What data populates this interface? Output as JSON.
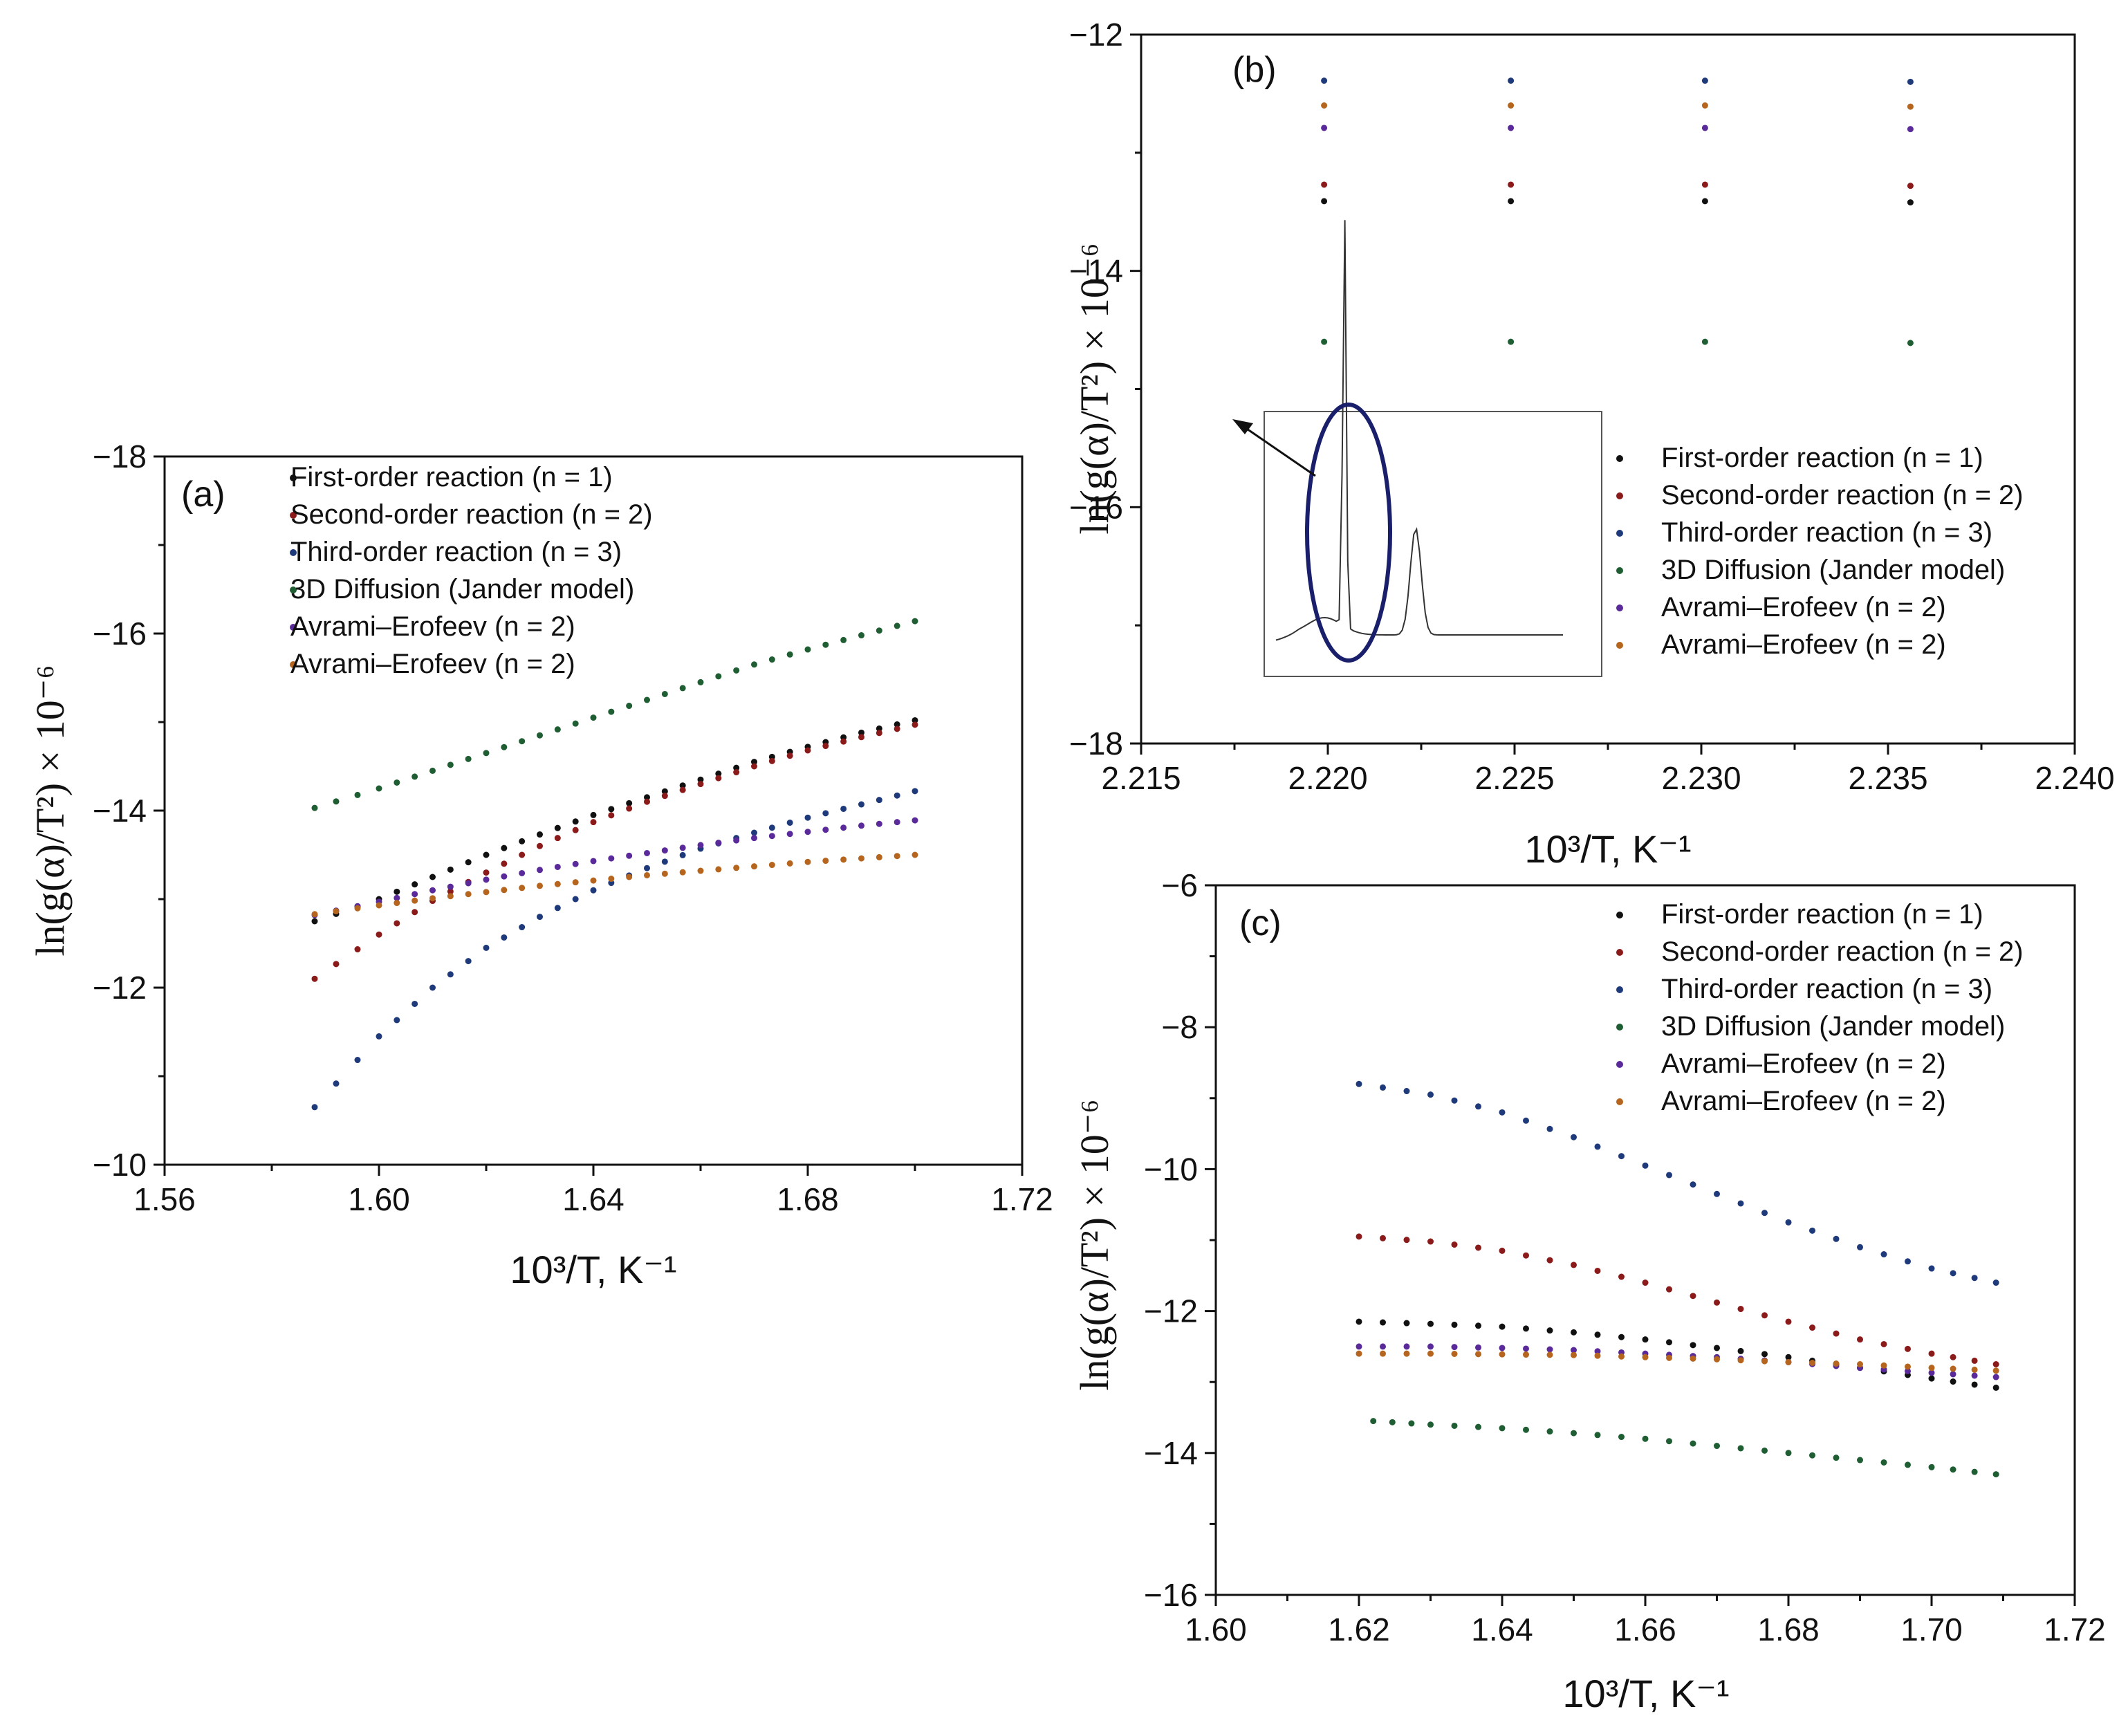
{
  "colors": {
    "first_order": "#111111",
    "second_order": "#8b1a1a",
    "third_order": "#1f3a7a",
    "diffusion_3d": "#1e5e32",
    "avrami_1": "#5a2a9a",
    "avrami_2": "#b5651d",
    "inset_ellipse": "#1a1f6b"
  },
  "chart_data": [
    {
      "id": "a",
      "type": "scatter",
      "panel_label": "(a)",
      "xlabel": "10³/T, K⁻¹",
      "ylabel": "ln(g(α)/T²) × 10⁻⁶",
      "xlim": [
        1.56,
        1.72
      ],
      "ylim": [
        -10,
        -18
      ],
      "xticks": [
        "1.56",
        "1.60",
        "1.64",
        "1.68",
        "1.72"
      ],
      "yticks": [
        "−10",
        "−12",
        "−14",
        "−16",
        "−18"
      ],
      "legend": [
        "First-order reaction (n = 1)",
        "Second-order reaction (n = 2)",
        "Third-order reaction (n = 3)",
        "3D Diffusion (Jander model)",
        "Avrami–Erofeev (n = 2)",
        "Avrami–Erofeev (n = 2)"
      ],
      "series": [
        {
          "name": "First-order reaction (n = 1)",
          "color_key": "first_order",
          "x": [
            1.588,
            1.6,
            1.61,
            1.62,
            1.63,
            1.64,
            1.65,
            1.66,
            1.67,
            1.68,
            1.69,
            1.7
          ],
          "y": [
            -12.75,
            -13.0,
            -13.25,
            -13.5,
            -13.73,
            -13.95,
            -14.15,
            -14.35,
            -14.55,
            -14.72,
            -14.88,
            -15.02
          ]
        },
        {
          "name": "Second-order reaction (n = 2)",
          "color_key": "second_order",
          "x": [
            1.588,
            1.6,
            1.61,
            1.62,
            1.63,
            1.64,
            1.65,
            1.66,
            1.67,
            1.68,
            1.69,
            1.7
          ],
          "y": [
            -12.1,
            -12.6,
            -12.98,
            -13.3,
            -13.6,
            -13.87,
            -14.1,
            -14.3,
            -14.5,
            -14.68,
            -14.83,
            -14.97
          ]
        },
        {
          "name": "Third-order reaction (n = 3)",
          "color_key": "third_order",
          "x": [
            1.588,
            1.6,
            1.61,
            1.62,
            1.63,
            1.64,
            1.65,
            1.66,
            1.67,
            1.68,
            1.69,
            1.7
          ],
          "y": [
            -10.65,
            -11.45,
            -12.0,
            -12.45,
            -12.8,
            -13.1,
            -13.35,
            -13.57,
            -13.75,
            -13.92,
            -14.07,
            -14.22
          ]
        },
        {
          "name": "3D Diffusion (Jander model)",
          "color_key": "diffusion_3d",
          "x": [
            1.588,
            1.6,
            1.61,
            1.62,
            1.63,
            1.64,
            1.65,
            1.66,
            1.67,
            1.68,
            1.69,
            1.7
          ],
          "y": [
            -14.03,
            -14.25,
            -14.45,
            -14.65,
            -14.85,
            -15.05,
            -15.25,
            -15.45,
            -15.65,
            -15.82,
            -15.98,
            -16.14
          ]
        },
        {
          "name": "Avrami–Erofeev (n = 2)",
          "color_key": "avrami_1",
          "x": [
            1.588,
            1.6,
            1.61,
            1.62,
            1.63,
            1.64,
            1.65,
            1.66,
            1.67,
            1.68,
            1.69,
            1.7
          ],
          "y": [
            -12.82,
            -12.97,
            -13.1,
            -13.22,
            -13.33,
            -13.43,
            -13.52,
            -13.61,
            -13.69,
            -13.76,
            -13.83,
            -13.89
          ]
        },
        {
          "name": "Avrami–Erofeev (n = 2)",
          "color_key": "avrami_2",
          "x": [
            1.588,
            1.6,
            1.61,
            1.62,
            1.63,
            1.64,
            1.65,
            1.66,
            1.67,
            1.68,
            1.69,
            1.7
          ],
          "y": [
            -12.83,
            -12.93,
            -13.01,
            -13.08,
            -13.15,
            -13.21,
            -13.27,
            -13.32,
            -13.37,
            -13.42,
            -13.46,
            -13.5
          ]
        }
      ]
    },
    {
      "id": "b",
      "type": "scatter",
      "panel_label": "(b)",
      "xlabel": "10³/T, K⁻¹",
      "ylabel": "ln(g(α)/T²) × 10⁻⁶",
      "xlim": [
        2.215,
        2.24
      ],
      "ylim": [
        -18,
        -12
      ],
      "xticks": [
        "2.215",
        "2.220",
        "2.225",
        "2.230",
        "2.235",
        "2.240"
      ],
      "yticks": [
        "−18",
        "−16",
        "−14",
        "−12"
      ],
      "legend": [
        "First-order reaction (n = 1)",
        "Second-order reaction (n = 2)",
        "Third-order reaction (n = 3)",
        "3D Diffusion (Jander model)",
        "Avrami–Erofeev (n = 2)",
        "Avrami–Erofeev (n = 2)"
      ],
      "series": [
        {
          "name": "First-order reaction (n = 1)",
          "color_key": "first_order",
          "x": [
            2.2199,
            2.2249,
            2.2301,
            2.2356
          ],
          "y": [
            -13.41,
            -13.41,
            -13.41,
            -13.42
          ]
        },
        {
          "name": "Second-order reaction (n = 2)",
          "color_key": "second_order",
          "x": [
            2.2199,
            2.2249,
            2.2301,
            2.2356
          ],
          "y": [
            -13.27,
            -13.27,
            -13.27,
            -13.28
          ]
        },
        {
          "name": "Third-order reaction (n = 3)",
          "color_key": "third_order",
          "x": [
            2.2199,
            2.2249,
            2.2301,
            2.2356
          ],
          "y": [
            -12.39,
            -12.39,
            -12.39,
            -12.4
          ]
        },
        {
          "name": "3D Diffusion (Jander model)",
          "color_key": "diffusion_3d",
          "x": [
            2.2199,
            2.2249,
            2.2301,
            2.2356
          ],
          "y": [
            -14.6,
            -14.6,
            -14.6,
            -14.61
          ]
        },
        {
          "name": "Avrami–Erofeev (n = 2)",
          "color_key": "avrami_1",
          "x": [
            2.2199,
            2.2249,
            2.2301,
            2.2356
          ],
          "y": [
            -12.79,
            -12.79,
            -12.79,
            -12.8
          ]
        },
        {
          "name": "Avrami–Erofeev (n = 2)",
          "color_key": "avrami_2",
          "x": [
            2.2199,
            2.2249,
            2.2301,
            2.2356
          ],
          "y": [
            -12.6,
            -12.6,
            -12.6,
            -12.61
          ]
        }
      ]
    },
    {
      "id": "c",
      "type": "scatter",
      "panel_label": "(c)",
      "xlabel": "10³/T, K⁻¹",
      "ylabel": "ln(g(α)/T²) × 10⁻⁶",
      "xlim": [
        1.6,
        1.72
      ],
      "ylim": [
        -16,
        -6
      ],
      "xticks": [
        "1.60",
        "1.62",
        "1.64",
        "1.66",
        "1.68",
        "1.70",
        "1.72"
      ],
      "yticks": [
        "−16",
        "−14",
        "−12",
        "−10",
        "−8",
        "−6"
      ],
      "legend": [
        "First-order reaction (n = 1)",
        "Second-order reaction (n = 2)",
        "Third-order reaction (n = 3)",
        "3D Diffusion (Jander model)",
        "Avrami–Erofeev (n = 2)",
        "Avrami–Erofeev (n = 2)"
      ],
      "series": [
        {
          "name": "First-order reaction (n = 1)",
          "color_key": "first_order",
          "x": [
            1.62,
            1.63,
            1.64,
            1.65,
            1.66,
            1.67,
            1.68,
            1.69,
            1.7,
            1.709
          ],
          "y": [
            -12.15,
            -12.18,
            -12.22,
            -12.3,
            -12.4,
            -12.52,
            -12.65,
            -12.8,
            -12.95,
            -13.08
          ]
        },
        {
          "name": "Second-order reaction (n = 2)",
          "color_key": "second_order",
          "x": [
            1.62,
            1.63,
            1.64,
            1.65,
            1.66,
            1.67,
            1.68,
            1.69,
            1.7,
            1.709
          ],
          "y": [
            -10.95,
            -11.02,
            -11.15,
            -11.35,
            -11.6,
            -11.88,
            -12.15,
            -12.4,
            -12.6,
            -12.75
          ]
        },
        {
          "name": "Third-order reaction (n = 3)",
          "color_key": "third_order",
          "x": [
            1.62,
            1.63,
            1.64,
            1.65,
            1.66,
            1.67,
            1.68,
            1.69,
            1.7,
            1.709
          ],
          "y": [
            -8.8,
            -8.95,
            -9.2,
            -9.55,
            -9.95,
            -10.35,
            -10.75,
            -11.1,
            -11.4,
            -11.6
          ]
        },
        {
          "name": "3D Diffusion (Jander model)",
          "color_key": "diffusion_3d",
          "x": [
            1.622,
            1.63,
            1.64,
            1.65,
            1.66,
            1.67,
            1.68,
            1.69,
            1.7,
            1.709
          ],
          "y": [
            -13.55,
            -13.6,
            -13.65,
            -13.72,
            -13.8,
            -13.9,
            -14.0,
            -14.1,
            -14.2,
            -14.3
          ]
        },
        {
          "name": "Avrami–Erofeev (n = 2)",
          "color_key": "avrami_1",
          "x": [
            1.62,
            1.63,
            1.64,
            1.65,
            1.66,
            1.67,
            1.68,
            1.69,
            1.7,
            1.709
          ],
          "y": [
            -12.5,
            -12.5,
            -12.52,
            -12.55,
            -12.6,
            -12.65,
            -12.72,
            -12.8,
            -12.87,
            -12.93
          ]
        },
        {
          "name": "Avrami–Erofeev (n = 2)",
          "color_key": "avrami_2",
          "x": [
            1.62,
            1.63,
            1.64,
            1.65,
            1.66,
            1.67,
            1.68,
            1.69,
            1.7,
            1.709
          ],
          "y": [
            -12.6,
            -12.6,
            -12.61,
            -12.62,
            -12.65,
            -12.68,
            -12.72,
            -12.75,
            -12.8,
            -12.84
          ]
        }
      ]
    }
  ]
}
